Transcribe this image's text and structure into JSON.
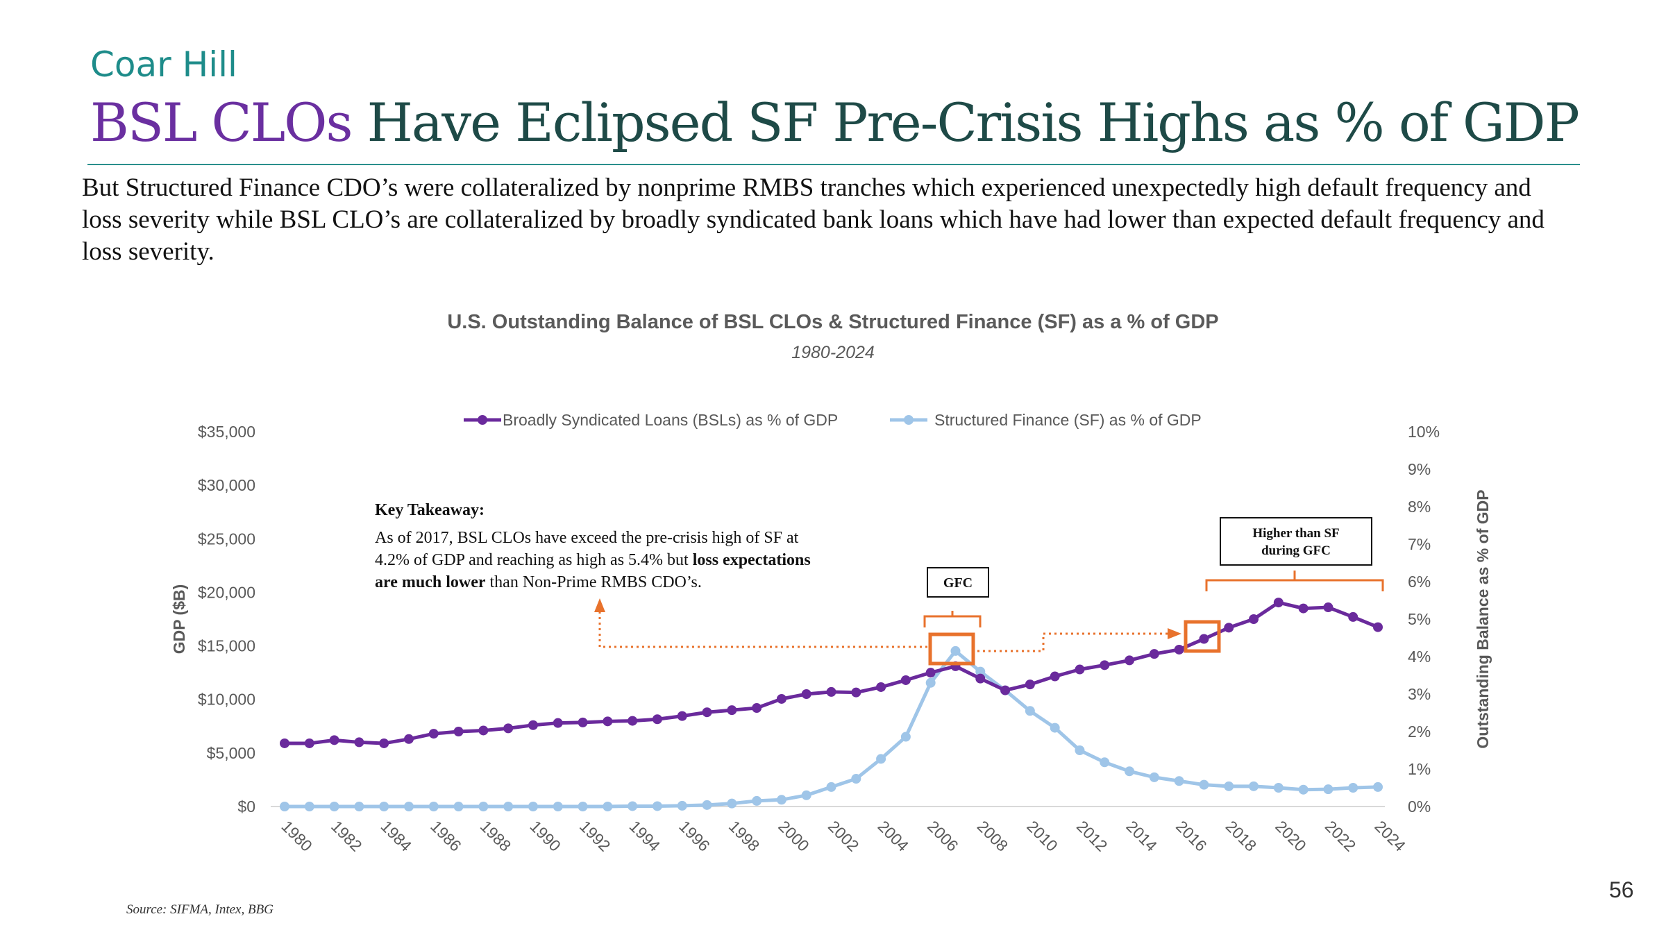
{
  "brand": "Coar Hill",
  "title": {
    "accent": "BSL CLOs",
    "rest": " Have Eclipsed SF Pre-Crisis Highs as % of GDP"
  },
  "subtitle": "But Structured Finance CDO’s were collateralized by nonprime RMBS tranches which experienced unexpectedly high default frequency and loss severity while BSL CLO’s are collateralized by broadly syndicated bank loans which have had lower than expected default frequency and loss severity.",
  "source": "Source: SIFMA, Intex, BBG",
  "page_number": "56",
  "colors": {
    "bsl": "#6a2a9c",
    "sf": "#9fc5e8",
    "annotation": "#e8722c",
    "brand": "#1e8c8a",
    "accent": "#6a2fa0"
  },
  "chart_data": {
    "type": "line",
    "title": "U.S. Outstanding Balance of BSL CLOs & Structured Finance (SF) as a % of GDP",
    "subtitle": "1980-2024",
    "ylabel_left": "GDP ($B)",
    "ylabel_right": "Outstanding Balance as % of GDP",
    "ylim_left": [
      0,
      35000
    ],
    "ylim_right": [
      0,
      10
    ],
    "left_ticks": [
      "$0",
      "$5,000",
      "$10,000",
      "$15,000",
      "$20,000",
      "$25,000",
      "$30,000",
      "$35,000"
    ],
    "right_ticks": [
      "0%",
      "1%",
      "2%",
      "3%",
      "4%",
      "5%",
      "6%",
      "7%",
      "8%",
      "9%",
      "10%"
    ],
    "x": [
      1980,
      1981,
      1982,
      1983,
      1984,
      1985,
      1986,
      1987,
      1988,
      1989,
      1990,
      1991,
      1992,
      1993,
      1994,
      1995,
      1996,
      1997,
      1998,
      1999,
      2000,
      2001,
      2002,
      2003,
      2004,
      2005,
      2006,
      2007,
      2008,
      2009,
      2010,
      2011,
      2012,
      2013,
      2014,
      2015,
      2016,
      2017,
      2018,
      2019,
      2020,
      2021,
      2022,
      2023,
      2024
    ],
    "x_tick_labels": [
      "1980",
      "1982",
      "1984",
      "1986",
      "1988",
      "1990",
      "1992",
      "1994",
      "1996",
      "1998",
      "2000",
      "2002",
      "2004",
      "2006",
      "2008",
      "2010",
      "2012",
      "2014",
      "2016",
      "2018",
      "2020",
      "2022",
      "2024"
    ],
    "legend_position": "top",
    "series": [
      {
        "name": "Broadly Syndicated Loans (BSLs) as % of GDP",
        "axis": "left",
        "values": [
          5900,
          5900,
          6200,
          6000,
          5900,
          6300,
          6800,
          7000,
          7100,
          7300,
          7600,
          7800,
          7850,
          7950,
          8000,
          8150,
          8450,
          8800,
          9000,
          9200,
          10050,
          10500,
          10700,
          10650,
          11150,
          11800,
          12500,
          13100,
          11950,
          10850,
          11400,
          12150,
          12800,
          13200,
          13650,
          14250,
          14650,
          15650,
          16700,
          17500,
          19050,
          18500,
          18600,
          17700,
          16750
        ]
      },
      {
        "name": "Structured Finance (SF) as % of GDP",
        "axis": "right",
        "values": [
          0,
          0,
          0,
          0,
          0,
          0,
          0,
          0,
          0,
          0,
          0,
          0,
          0,
          0,
          0.01,
          0.01,
          0.02,
          0.04,
          0.08,
          0.15,
          0.18,
          0.3,
          0.52,
          0.74,
          1.27,
          1.86,
          3.3,
          4.15,
          3.6,
          3.1,
          2.55,
          2.1,
          1.5,
          1.18,
          0.94,
          0.78,
          0.68,
          0.58,
          0.54,
          0.54,
          0.5,
          0.45,
          0.46,
          0.5,
          0.52
        ]
      }
    ],
    "annotations": {
      "key_takeaway_heading": "Key Takeaway:",
      "key_takeaway_text": "As of 2017, BSL CLOs have exceed the pre-crisis high of SF at 4.2% of GDP and reaching as high as 5.4% but ",
      "key_takeaway_bold1": "loss expectations",
      "key_takeaway_bold2": "are much lower",
      "key_takeaway_tail": " than Non-Prime RMBS CDO’s.",
      "gfc_label": "GFC",
      "higher_label_line1": "Higher than SF",
      "higher_label_line2": "during GFC"
    }
  }
}
